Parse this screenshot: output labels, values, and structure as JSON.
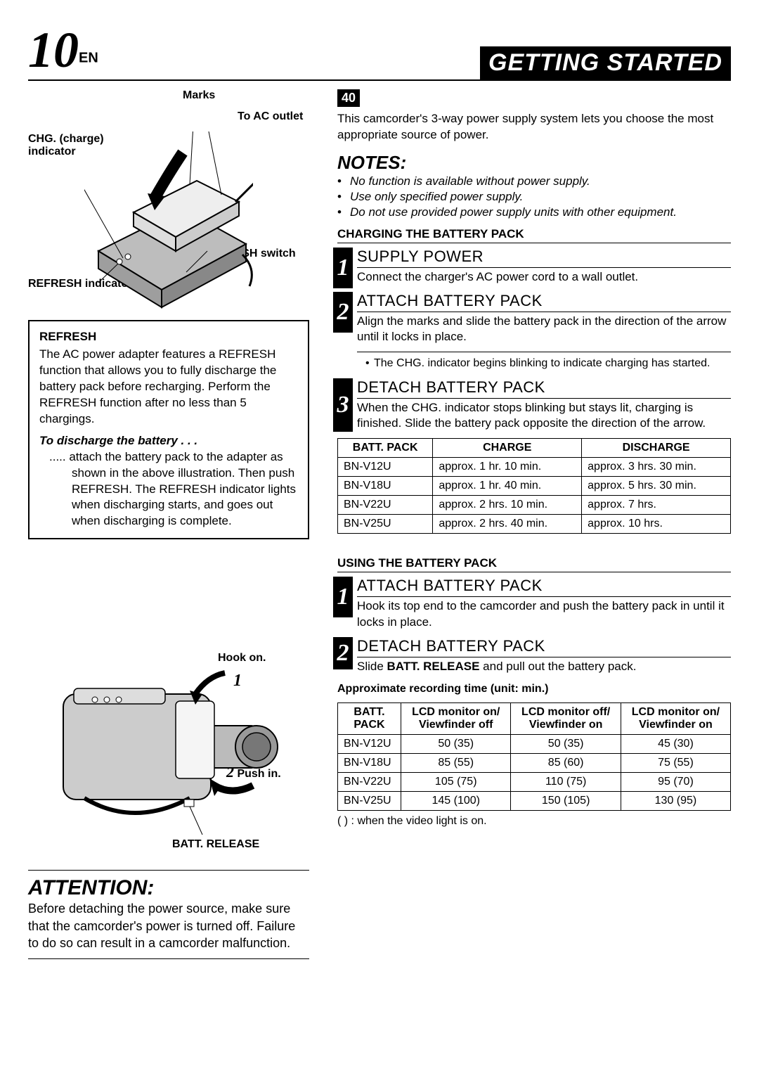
{
  "header": {
    "page_number": "10",
    "page_suffix": "EN",
    "title": "GETTING STARTED"
  },
  "diagram": {
    "marks": "Marks",
    "ac_outlet": "To AC outlet",
    "chg_indicator": "CHG. (charge) indicator",
    "refresh_switch": "REFRESH switch",
    "refresh_indicator": "REFRESH indicator"
  },
  "refresh": {
    "title": "REFRESH",
    "body": "The AC power adapter features a REFRESH function that allows you to fully discharge the battery pack before recharging. Perform the REFRESH function after no less than 5 chargings.",
    "subhead": "To discharge the battery . . .",
    "detail": "..... attach the battery pack to the adapter as shown in the above illustration. Then push REFRESH. The REFRESH indicator lights when discharging starts, and goes out when discharging is complete."
  },
  "camcorder": {
    "hook_on": "Hook on.",
    "push_in": "Push in.",
    "batt_release": "BATT. RELEASE",
    "arrow1": "1",
    "arrow2": "2"
  },
  "attention": {
    "title": "ATTENTION:",
    "body": "Before detaching the power source, make sure that the camcorder's power is turned off. Failure to do so can result in a camcorder malfunction."
  },
  "right": {
    "forty": "40",
    "intro": "This camcorder's 3-way power supply system lets you choose the most appropriate source of power.",
    "notes_title": "NOTES:",
    "notes": [
      "No function is available without power supply.",
      "Use only specified power supply.",
      "Do not use provided power supply units with other equipment."
    ],
    "charging_h": "CHARGING THE BATTERY PACK",
    "steps_charge": [
      {
        "n": "1",
        "title": "SUPPLY POWER",
        "body": "Connect the charger's AC power cord to a wall outlet."
      },
      {
        "n": "2",
        "title": "ATTACH BATTERY PACK",
        "body": "Align the marks and slide the battery pack in the direction of the arrow until it locks in place.",
        "sub": "The CHG. indicator begins blinking to indicate charging has started."
      },
      {
        "n": "3",
        "title": "DETACH BATTERY PACK",
        "body": "When the CHG. indicator stops blinking but stays lit, charging is finished. Slide the battery pack opposite the direction of the arrow."
      }
    ],
    "table1": {
      "headers": [
        "BATT. PACK",
        "CHARGE",
        "DISCHARGE"
      ],
      "rows": [
        [
          "BN-V12U",
          "approx. 1 hr. 10 min.",
          "approx. 3 hrs. 30 min."
        ],
        [
          "BN-V18U",
          "approx. 1 hr. 40 min.",
          "approx. 5 hrs. 30 min."
        ],
        [
          "BN-V22U",
          "approx. 2 hrs. 10 min.",
          "approx. 7 hrs."
        ],
        [
          "BN-V25U",
          "approx. 2 hrs. 40 min.",
          "approx. 10 hrs."
        ]
      ]
    },
    "using_h": "USING THE BATTERY PACK",
    "steps_use": [
      {
        "n": "1",
        "title": "ATTACH BATTERY PACK",
        "body": "Hook its top end to the camcorder and push the battery pack in until it locks in place."
      },
      {
        "n": "2",
        "title": "DETACH BATTERY PACK",
        "body_prefix": "Slide ",
        "body_bold": "BATT. RELEASE",
        "body_suffix": " and pull out the battery pack."
      }
    ],
    "table2_caption": "Approximate recording time (unit: min.)",
    "table2": {
      "headers": [
        "BATT. PACK",
        "LCD monitor on/ Viewfinder off",
        "LCD monitor off/ Viewfinder on",
        "LCD monitor on/ Viewfinder on"
      ],
      "rows": [
        [
          "BN-V12U",
          "50 (35)",
          "50 (35)",
          "45 (30)"
        ],
        [
          "BN-V18U",
          "85 (55)",
          "85 (60)",
          "75 (55)"
        ],
        [
          "BN-V22U",
          "105 (75)",
          "110 (75)",
          "95 (70)"
        ],
        [
          "BN-V25U",
          "145 (100)",
          "150 (105)",
          "130 (95)"
        ]
      ]
    },
    "footer_note": "(   ) : when the video light is on."
  }
}
